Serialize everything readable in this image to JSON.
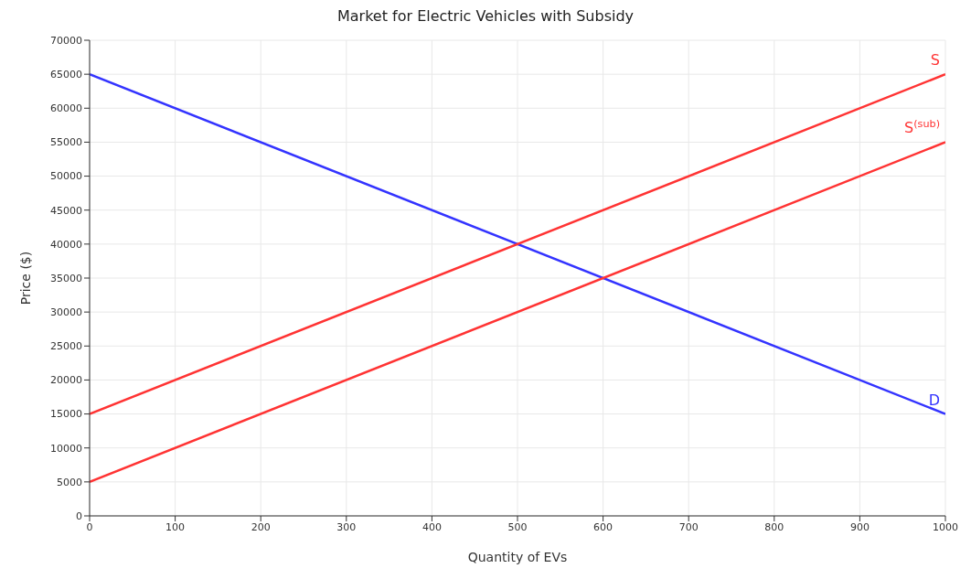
{
  "chart_data": {
    "type": "line",
    "title": "Market for Electric Vehicles with Subsidy",
    "xlabel": "Quantity of EVs",
    "ylabel": "Price ($)",
    "x": [
      0,
      1000
    ],
    "series": [
      {
        "name": "D",
        "color": "#3333ff",
        "values": [
          65000,
          15000
        ]
      },
      {
        "name": "S",
        "color": "#ff3333",
        "values": [
          15000,
          65000
        ]
      },
      {
        "name": "S$^{(sub)}$",
        "color": "#ff3333",
        "values": [
          5000,
          55000
        ]
      }
    ],
    "xlim": [
      0,
      1000
    ],
    "xticks": [
      0,
      100,
      200,
      300,
      400,
      500,
      600,
      700,
      800,
      900,
      1000
    ],
    "ylim": [
      0,
      70000
    ],
    "yticks": [
      0,
      5000,
      10000,
      15000,
      20000,
      25000,
      30000,
      35000,
      40000,
      45000,
      50000,
      55000,
      60000,
      65000,
      70000
    ],
    "grid": true,
    "marker": "none",
    "line_style": "solid",
    "legend": false
  }
}
